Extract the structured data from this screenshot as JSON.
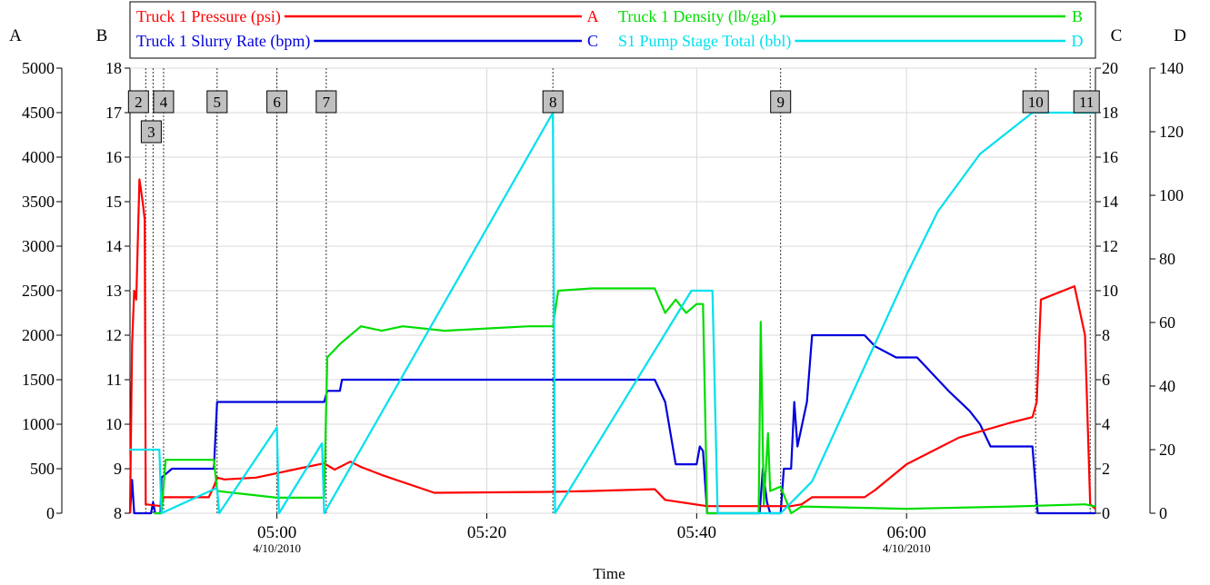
{
  "chart_data": {
    "type": "line",
    "xlabel": "Time",
    "x_range": [
      "04:46",
      "06:18"
    ],
    "x_ticks": [
      {
        "time": "05:00",
        "date": "4/10/2010"
      },
      {
        "time": "05:20",
        "date": ""
      },
      {
        "time": "05:40",
        "date": ""
      },
      {
        "time": "06:00",
        "date": "4/10/2010"
      }
    ],
    "grid": true,
    "legend_placement": "top",
    "axes": [
      {
        "id": "A",
        "label": "A",
        "side": "left",
        "range": [
          0,
          5000
        ],
        "ticks": [
          0,
          500,
          1000,
          1500,
          2000,
          2500,
          3000,
          3500,
          4000,
          4500,
          5000
        ]
      },
      {
        "id": "B",
        "label": "B",
        "side": "left",
        "range": [
          8,
          18
        ],
        "ticks": [
          8,
          9,
          10,
          11,
          12,
          13,
          14,
          15,
          16,
          17,
          18
        ]
      },
      {
        "id": "C",
        "label": "C",
        "side": "right",
        "range": [
          0,
          20
        ],
        "ticks": [
          0,
          2,
          4,
          6,
          8,
          10,
          12,
          14,
          16,
          18,
          20
        ]
      },
      {
        "id": "D",
        "label": "D",
        "side": "right",
        "range": [
          0,
          140
        ],
        "ticks": [
          0,
          20,
          40,
          60,
          80,
          100,
          120,
          140
        ]
      }
    ],
    "stages": [
      {
        "label": "2",
        "time": "04:47.5"
      },
      {
        "label": "3",
        "time": "04:48.2"
      },
      {
        "label": "4",
        "time": "04:49.2"
      },
      {
        "label": "5",
        "time": "04:54.3"
      },
      {
        "label": "6",
        "time": "05:00.0"
      },
      {
        "label": "7",
        "time": "05:04.7"
      },
      {
        "label": "8",
        "time": "05:26.3"
      },
      {
        "label": "9",
        "time": "05:48.0"
      },
      {
        "label": "10",
        "time": "06:12.3"
      },
      {
        "label": "11",
        "time": "06:17.5"
      }
    ],
    "series": [
      {
        "name": "Truck 1 Pressure (psi)",
        "axis": "A",
        "color": "#ff0000",
        "points": [
          [
            "04:46.0",
            0
          ],
          [
            "04:46.2",
            1900
          ],
          [
            "04:46.4",
            2500
          ],
          [
            "04:46.6",
            2400
          ],
          [
            "04:46.9",
            3750
          ],
          [
            "04:47.2",
            3500
          ],
          [
            "04:47.4",
            3300
          ],
          [
            "04:47.5",
            100
          ],
          [
            "04:49.0",
            80
          ],
          [
            "04:49.2",
            180
          ],
          [
            "04:53.0",
            180
          ],
          [
            "04:53.5",
            180
          ],
          [
            "04:54.0",
            300
          ],
          [
            "04:54.3",
            400
          ],
          [
            "04:55.0",
            380
          ],
          [
            "04:58.0",
            400
          ],
          [
            "05:00.0",
            450
          ],
          [
            "05:02.0",
            500
          ],
          [
            "05:04.5",
            560
          ],
          [
            "05:05.5",
            490
          ],
          [
            "05:07.0",
            580
          ],
          [
            "05:08.0",
            520
          ],
          [
            "05:10.0",
            430
          ],
          [
            "05:15.0",
            230
          ],
          [
            "05:26.0",
            240
          ],
          [
            "05:30.0",
            250
          ],
          [
            "05:36.0",
            270
          ],
          [
            "05:37.0",
            150
          ],
          [
            "05:41.0",
            80
          ],
          [
            "05:49.0",
            80
          ],
          [
            "05:50.0",
            100
          ],
          [
            "05:51.0",
            180
          ],
          [
            "05:56.0",
            180
          ],
          [
            "05:57.0",
            260
          ],
          [
            "06:00.0",
            550
          ],
          [
            "06:05.0",
            850
          ],
          [
            "06:10.0",
            1020
          ],
          [
            "06:12.0",
            1080
          ],
          [
            "06:12.4",
            1250
          ],
          [
            "06:12.8",
            2400
          ],
          [
            "06:16.0",
            2550
          ],
          [
            "06:17.0",
            2000
          ],
          [
            "06:17.5",
            100
          ],
          [
            "06:18.0",
            50
          ]
        ]
      },
      {
        "name": "Truck 1 Density (lb/gal)",
        "axis": "B",
        "color": "#00dd00",
        "points": [
          [
            "04:48.3",
            8.0
          ],
          [
            "04:49.0",
            8.0
          ],
          [
            "04:49.4",
            9.2
          ],
          [
            "04:54.0",
            9.2
          ],
          [
            "04:54.3",
            8.5
          ],
          [
            "05:00.0",
            8.35
          ],
          [
            "05:04.5",
            8.35
          ],
          [
            "05:04.8",
            11.5
          ],
          [
            "05:06.0",
            11.8
          ],
          [
            "05:08.0",
            12.2
          ],
          [
            "05:10.0",
            12.1
          ],
          [
            "05:12.0",
            12.2
          ],
          [
            "05:16.0",
            12.1
          ],
          [
            "05:20.0",
            12.15
          ],
          [
            "05:24.0",
            12.2
          ],
          [
            "05:26.3",
            12.2
          ],
          [
            "05:26.8",
            13.0
          ],
          [
            "05:30.0",
            13.05
          ],
          [
            "05:36.0",
            13.05
          ],
          [
            "05:37.0",
            12.5
          ],
          [
            "05:38.0",
            12.8
          ],
          [
            "05:39.0",
            12.5
          ],
          [
            "05:40.0",
            12.7
          ],
          [
            "05:40.6",
            12.7
          ],
          [
            "05:41.0",
            8.0
          ],
          [
            "05:45.9",
            8.0
          ],
          [
            "05:46.1",
            12.3
          ],
          [
            "05:46.4",
            8.2
          ],
          [
            "05:46.8",
            9.8
          ],
          [
            "05:47.0",
            8.5
          ],
          [
            "05:48.0",
            8.6
          ],
          [
            "05:49.0",
            8.0
          ],
          [
            "05:50.0",
            8.15
          ],
          [
            "06:00.0",
            8.1
          ],
          [
            "06:10.0",
            8.15
          ],
          [
            "06:17.0",
            8.2
          ],
          [
            "06:18.0",
            8.15
          ]
        ]
      },
      {
        "name": "Truck 1 Slurry Rate (bpm)",
        "axis": "C",
        "color": "#0000dd",
        "points": [
          [
            "04:46.0",
            0
          ],
          [
            "04:46.2",
            1.5
          ],
          [
            "04:46.4",
            0
          ],
          [
            "04:48.0",
            0
          ],
          [
            "04:48.2",
            0.5
          ],
          [
            "04:48.4",
            0
          ],
          [
            "04:48.9",
            0
          ],
          [
            "04:49.0",
            1.6
          ],
          [
            "04:50.0",
            2.0
          ],
          [
            "04:53.0",
            2.0
          ],
          [
            "04:54.0",
            2.0
          ],
          [
            "04:54.3",
            5.0
          ],
          [
            "05:04.5",
            5.0
          ],
          [
            "05:04.8",
            5.5
          ],
          [
            "05:06.0",
            5.5
          ],
          [
            "05:06.2",
            6.0
          ],
          [
            "05:36.0",
            6.0
          ],
          [
            "05:37.0",
            5.0
          ],
          [
            "05:38.0",
            2.2
          ],
          [
            "05:40.0",
            2.2
          ],
          [
            "05:40.3",
            3.0
          ],
          [
            "05:40.6",
            2.8
          ],
          [
            "05:41.0",
            0
          ],
          [
            "05:46.0",
            0
          ],
          [
            "05:46.3",
            2.0
          ],
          [
            "05:46.7",
            0.5
          ],
          [
            "05:47.0",
            0
          ],
          [
            "05:48.0",
            0
          ],
          [
            "05:48.3",
            2.0
          ],
          [
            "05:49.0",
            2.0
          ],
          [
            "05:49.3",
            5.0
          ],
          [
            "05:49.6",
            3.0
          ],
          [
            "05:50.5",
            5.0
          ],
          [
            "05:51.0",
            8.0
          ],
          [
            "05:56.0",
            8.0
          ],
          [
            "05:57.0",
            7.5
          ],
          [
            "05:59.0",
            7.0
          ],
          [
            "06:01.0",
            7.0
          ],
          [
            "06:03.0",
            6.0
          ],
          [
            "06:04.0",
            5.5
          ],
          [
            "06:06.0",
            4.6
          ],
          [
            "06:07.0",
            4.0
          ],
          [
            "06:08.0",
            3.0
          ],
          [
            "06:12.0",
            3.0
          ],
          [
            "06:12.5",
            0
          ],
          [
            "06:18.0",
            0
          ]
        ]
      },
      {
        "name": "S1 Pump Stage Total (bbl)",
        "axis": "D",
        "color": "#00e0ee",
        "points": [
          [
            "04:46.0",
            20
          ],
          [
            "04:48.8",
            20
          ],
          [
            "04:49.0",
            0
          ],
          [
            "04:54.3",
            8
          ],
          [
            "04:54.5",
            0
          ],
          [
            "05:00.0",
            27
          ],
          [
            "05:00.2",
            0
          ],
          [
            "05:04.3",
            22
          ],
          [
            "05:04.5",
            0
          ],
          [
            "05:26.3",
            126
          ],
          [
            "05:26.5",
            0
          ],
          [
            "05:39.5",
            70
          ],
          [
            "05:41.5",
            70
          ],
          [
            "05:42.0",
            0
          ],
          [
            "05:48.0",
            0
          ],
          [
            "05:51.0",
            10
          ],
          [
            "06:00.0",
            75
          ],
          [
            "06:03.0",
            95
          ],
          [
            "06:07.0",
            113
          ],
          [
            "06:12.0",
            126
          ],
          [
            "06:18.0",
            126
          ]
        ]
      }
    ]
  }
}
